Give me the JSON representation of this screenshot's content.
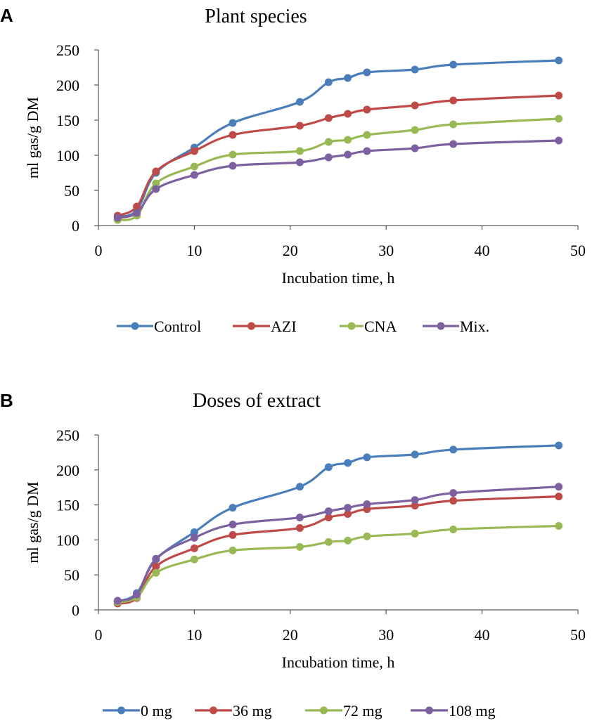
{
  "chart_data": [
    {
      "panel": "A",
      "type": "line",
      "title": "Plant species",
      "xlabel": "Incubation time, h",
      "ylabel": "ml gas/g DM",
      "xlim": [
        0,
        50
      ],
      "ylim": [
        0,
        250
      ],
      "xticks": [
        "0",
        "10",
        "20",
        "30",
        "40",
        "50"
      ],
      "yticks": [
        "0",
        "50",
        "100",
        "150",
        "200",
        "250"
      ],
      "x": [
        2,
        4,
        6,
        10,
        14,
        21,
        24,
        26,
        28,
        33,
        37,
        48
      ],
      "series": [
        {
          "name": "Control",
          "color": "#4a7ebb",
          "values": [
            12,
            22,
            75,
            111,
            146,
            176,
            204,
            210,
            218,
            222,
            229,
            235
          ]
        },
        {
          "name": "AZI",
          "color": "#be4b48",
          "values": [
            14,
            27,
            77,
            106,
            129,
            142,
            153,
            159,
            165,
            171,
            178,
            185
          ]
        },
        {
          "name": "CNA",
          "color": "#98b954",
          "values": [
            8,
            14,
            60,
            84,
            101,
            106,
            119,
            122,
            129,
            136,
            144,
            152
          ]
        },
        {
          "name": "Mix.",
          "color": "#7d60a0",
          "values": [
            11,
            18,
            52,
            72,
            85,
            90,
            97,
            101,
            106,
            110,
            116,
            121
          ]
        }
      ]
    },
    {
      "panel": "B",
      "type": "line",
      "title": "Doses of extract",
      "xlabel": "Incubation time, h",
      "ylabel": "ml gas/g DM",
      "xlim": [
        0,
        50
      ],
      "ylim": [
        0,
        250
      ],
      "xticks": [
        "0",
        "10",
        "20",
        "30",
        "40",
        "50"
      ],
      "yticks": [
        "0",
        "50",
        "100",
        "150",
        "200",
        "250"
      ],
      "x": [
        2,
        4,
        6,
        10,
        14,
        21,
        24,
        26,
        28,
        33,
        37,
        48
      ],
      "series": [
        {
          "name": "0 mg",
          "color": "#4a7ebb",
          "values": [
            12,
            24,
            72,
            111,
            146,
            176,
            204,
            210,
            218,
            222,
            229,
            235
          ]
        },
        {
          "name": "36 mg",
          "color": "#be4b48",
          "values": [
            9,
            17,
            62,
            88,
            107,
            117,
            132,
            137,
            144,
            149,
            156,
            162
          ]
        },
        {
          "name": "72 mg",
          "color": "#98b954",
          "values": [
            11,
            18,
            53,
            72,
            85,
            90,
            97,
            99,
            105,
            109,
            115,
            120
          ]
        },
        {
          "name": "108 mg",
          "color": "#7d60a0",
          "values": [
            13,
            22,
            73,
            103,
            122,
            132,
            141,
            146,
            151,
            157,
            167,
            176
          ]
        }
      ]
    }
  ]
}
